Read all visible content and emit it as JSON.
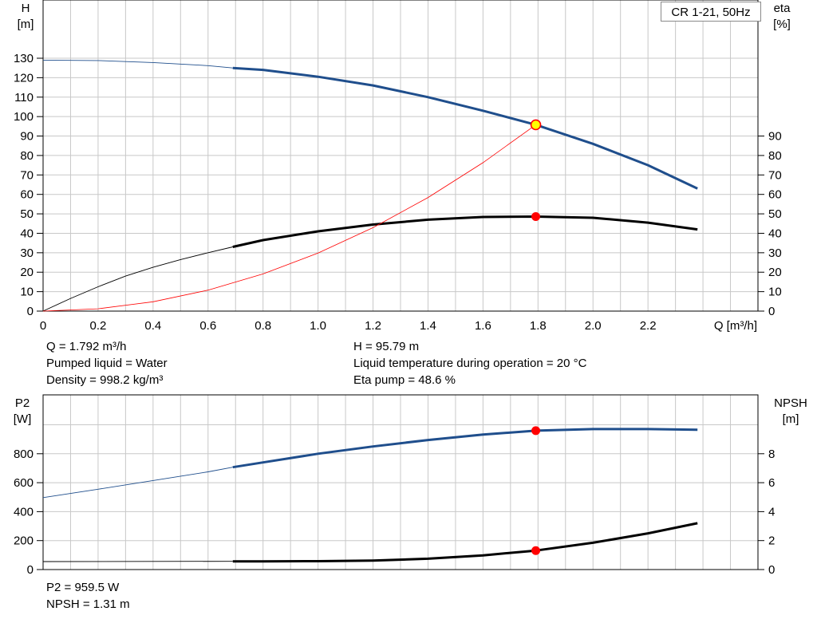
{
  "legend": "CR 1-21, 50Hz",
  "top_info": {
    "left": [
      "Q = 1.792 m³/h",
      "Pumped liquid = Water",
      "Density = 998.2 kg/m³"
    ],
    "right": [
      "H = 95.79 m",
      "Liquid temperature during operation = 20 °C",
      "Eta pump = 48.6 %"
    ]
  },
  "bottom_info": [
    "P2 = 959.5 W",
    "NPSH = 1.31 m"
  ],
  "colors": {
    "head": "#1f4e8c",
    "eta": "#000000",
    "system": "#ff0000",
    "power": "#1f4e8c",
    "npsh": "#000000",
    "marker": "#ff0000",
    "marker_op": "#ffff00",
    "grid": "#c8c8c8"
  },
  "chart_data": [
    {
      "type": "line",
      "x": {
        "label": "Q [m³/h]",
        "range": [
          0,
          2.6
        ],
        "ticks": [
          "0",
          "0.2",
          "0.4",
          "0.6",
          "0.8",
          "1.0",
          "1.2",
          "1.4",
          "1.6",
          "1.8",
          "2.0",
          "2.2"
        ]
      },
      "y_left": {
        "label": "H\n[m]",
        "range": [
          0,
          130
        ],
        "ticks": [
          "0",
          "10",
          "20",
          "30",
          "40",
          "50",
          "60",
          "70",
          "80",
          "90",
          "100",
          "110",
          "120",
          "130"
        ]
      },
      "y_right": {
        "label": "eta\n[%]",
        "range": [
          0,
          130
        ],
        "ticks": [
          "0",
          "10",
          "20",
          "30",
          "40",
          "50",
          "60",
          "70",
          "80",
          "90"
        ]
      },
      "grid": true,
      "legend": "top-right",
      "series": [
        {
          "key": "head",
          "axis": "left",
          "operating_from": 0.69,
          "points": [
            [
              0,
              129
            ],
            [
              0.2,
              128.8
            ],
            [
              0.4,
              127.8
            ],
            [
              0.6,
              126.2
            ],
            [
              0.69,
              125
            ],
            [
              0.8,
              124
            ],
            [
              1.0,
              120.5
            ],
            [
              1.2,
              116
            ],
            [
              1.4,
              110
            ],
            [
              1.6,
              103
            ],
            [
              1.792,
              95.79
            ],
            [
              2.0,
              86
            ],
            [
              2.2,
              75
            ],
            [
              2.38,
              63
            ]
          ]
        },
        {
          "key": "eta",
          "axis": "right",
          "operating_from": 0.69,
          "points": [
            [
              0,
              0
            ],
            [
              0.1,
              6.5
            ],
            [
              0.2,
              12.5
            ],
            [
              0.3,
              18
            ],
            [
              0.4,
              22.5
            ],
            [
              0.5,
              26.5
            ],
            [
              0.6,
              30
            ],
            [
              0.69,
              33
            ],
            [
              0.8,
              36.5
            ],
            [
              1.0,
              41
            ],
            [
              1.2,
              44.5
            ],
            [
              1.4,
              47
            ],
            [
              1.6,
              48.4
            ],
            [
              1.792,
              48.6
            ],
            [
              2.0,
              48
            ],
            [
              2.2,
              45.5
            ],
            [
              2.38,
              42
            ]
          ]
        },
        {
          "key": "system",
          "axis": "left",
          "operating_from": 0,
          "points": [
            [
              0,
              0
            ],
            [
              0.2,
              1.2
            ],
            [
              0.4,
              4.8
            ],
            [
              0.6,
              10.8
            ],
            [
              0.8,
              19.1
            ],
            [
              1.0,
              29.8
            ],
            [
              1.2,
              42.9
            ],
            [
              1.4,
              58.4
            ],
            [
              1.6,
              76.3
            ],
            [
              1.792,
              95.79
            ]
          ]
        }
      ],
      "markers": [
        {
          "x": 1.792,
          "y": 95.79,
          "axis": "left",
          "kind": "operating"
        },
        {
          "x": 1.792,
          "y": 48.6,
          "axis": "right",
          "kind": "point"
        }
      ]
    },
    {
      "type": "line",
      "x": {
        "label": "",
        "range": [
          0,
          2.6
        ]
      },
      "y_left": {
        "label": "P2\n[W]",
        "range": [
          0,
          1000
        ],
        "ticks": [
          "0",
          "200",
          "400",
          "600",
          "800"
        ]
      },
      "y_right": {
        "label": "NPSH\n[m]",
        "range": [
          0,
          10
        ],
        "ticks": [
          "0",
          "2",
          "4",
          "6",
          "8"
        ]
      },
      "grid": true,
      "series": [
        {
          "key": "power",
          "axis": "left",
          "operating_from": 0.69,
          "points": [
            [
              0,
              497
            ],
            [
              0.2,
              555
            ],
            [
              0.4,
              615
            ],
            [
              0.6,
              675
            ],
            [
              0.69,
              707
            ],
            [
              0.8,
              740
            ],
            [
              1.0,
              800
            ],
            [
              1.2,
              850
            ],
            [
              1.4,
              895
            ],
            [
              1.6,
              932
            ],
            [
              1.792,
              959.5
            ],
            [
              2.0,
              970
            ],
            [
              2.2,
              970
            ],
            [
              2.38,
              966
            ]
          ]
        },
        {
          "key": "npsh",
          "axis": "right",
          "operating_from": 0.69,
          "points": [
            [
              0,
              0.55
            ],
            [
              0.4,
              0.56
            ],
            [
              0.69,
              0.57
            ],
            [
              0.8,
              0.57
            ],
            [
              1.0,
              0.58
            ],
            [
              1.2,
              0.62
            ],
            [
              1.4,
              0.75
            ],
            [
              1.6,
              0.98
            ],
            [
              1.792,
              1.31
            ],
            [
              2.0,
              1.85
            ],
            [
              2.2,
              2.5
            ],
            [
              2.38,
              3.2
            ]
          ]
        }
      ],
      "markers": [
        {
          "x": 1.792,
          "y": 959.5,
          "axis": "left",
          "kind": "point"
        },
        {
          "x": 1.792,
          "y": 1.31,
          "axis": "right",
          "kind": "point"
        }
      ]
    }
  ]
}
